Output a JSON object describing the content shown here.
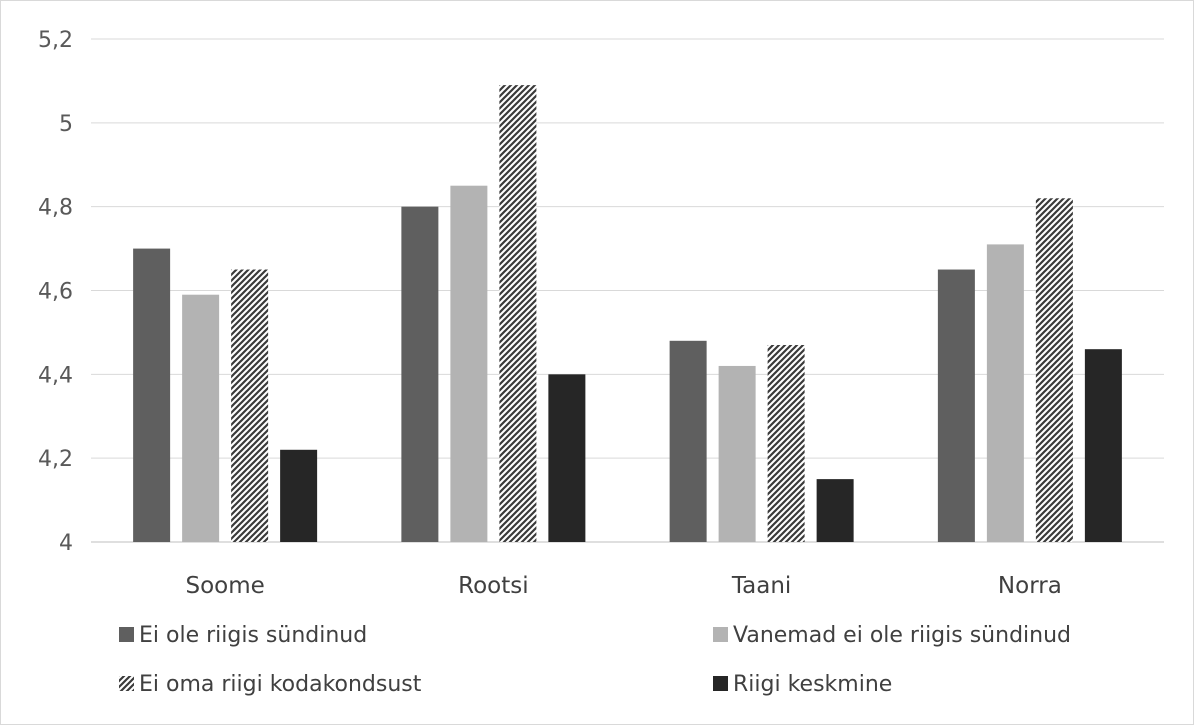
{
  "chart_data": {
    "type": "bar",
    "categories": [
      "Soome",
      "Rootsi",
      "Taani",
      "Norra"
    ],
    "series": [
      {
        "name": "Ei ole riigis sündinud",
        "values": [
          4.7,
          4.8,
          4.48,
          4.65
        ],
        "color": "#5f5f5f",
        "pattern": "solid"
      },
      {
        "name": "Vanemad ei ole riigis sündinud",
        "values": [
          4.59,
          4.85,
          4.42,
          4.71
        ],
        "color": "#b3b3b3",
        "pattern": "solid"
      },
      {
        "name": "Ei oma riigi kodakondsust",
        "values": [
          4.65,
          5.09,
          4.47,
          4.82
        ],
        "color": "#3a3a3a",
        "pattern": "diagonal-stripes"
      },
      {
        "name": "Riigi keskmine",
        "values": [
          4.22,
          4.4,
          4.15,
          4.46
        ],
        "color": "#262626",
        "pattern": "solid"
      }
    ],
    "ylim": [
      4,
      5.2
    ],
    "yticks": [
      "4",
      "4,2",
      "4,4",
      "4,6",
      "4,8",
      "5",
      "5,2"
    ],
    "grid": true,
    "legend_position": "bottom"
  }
}
